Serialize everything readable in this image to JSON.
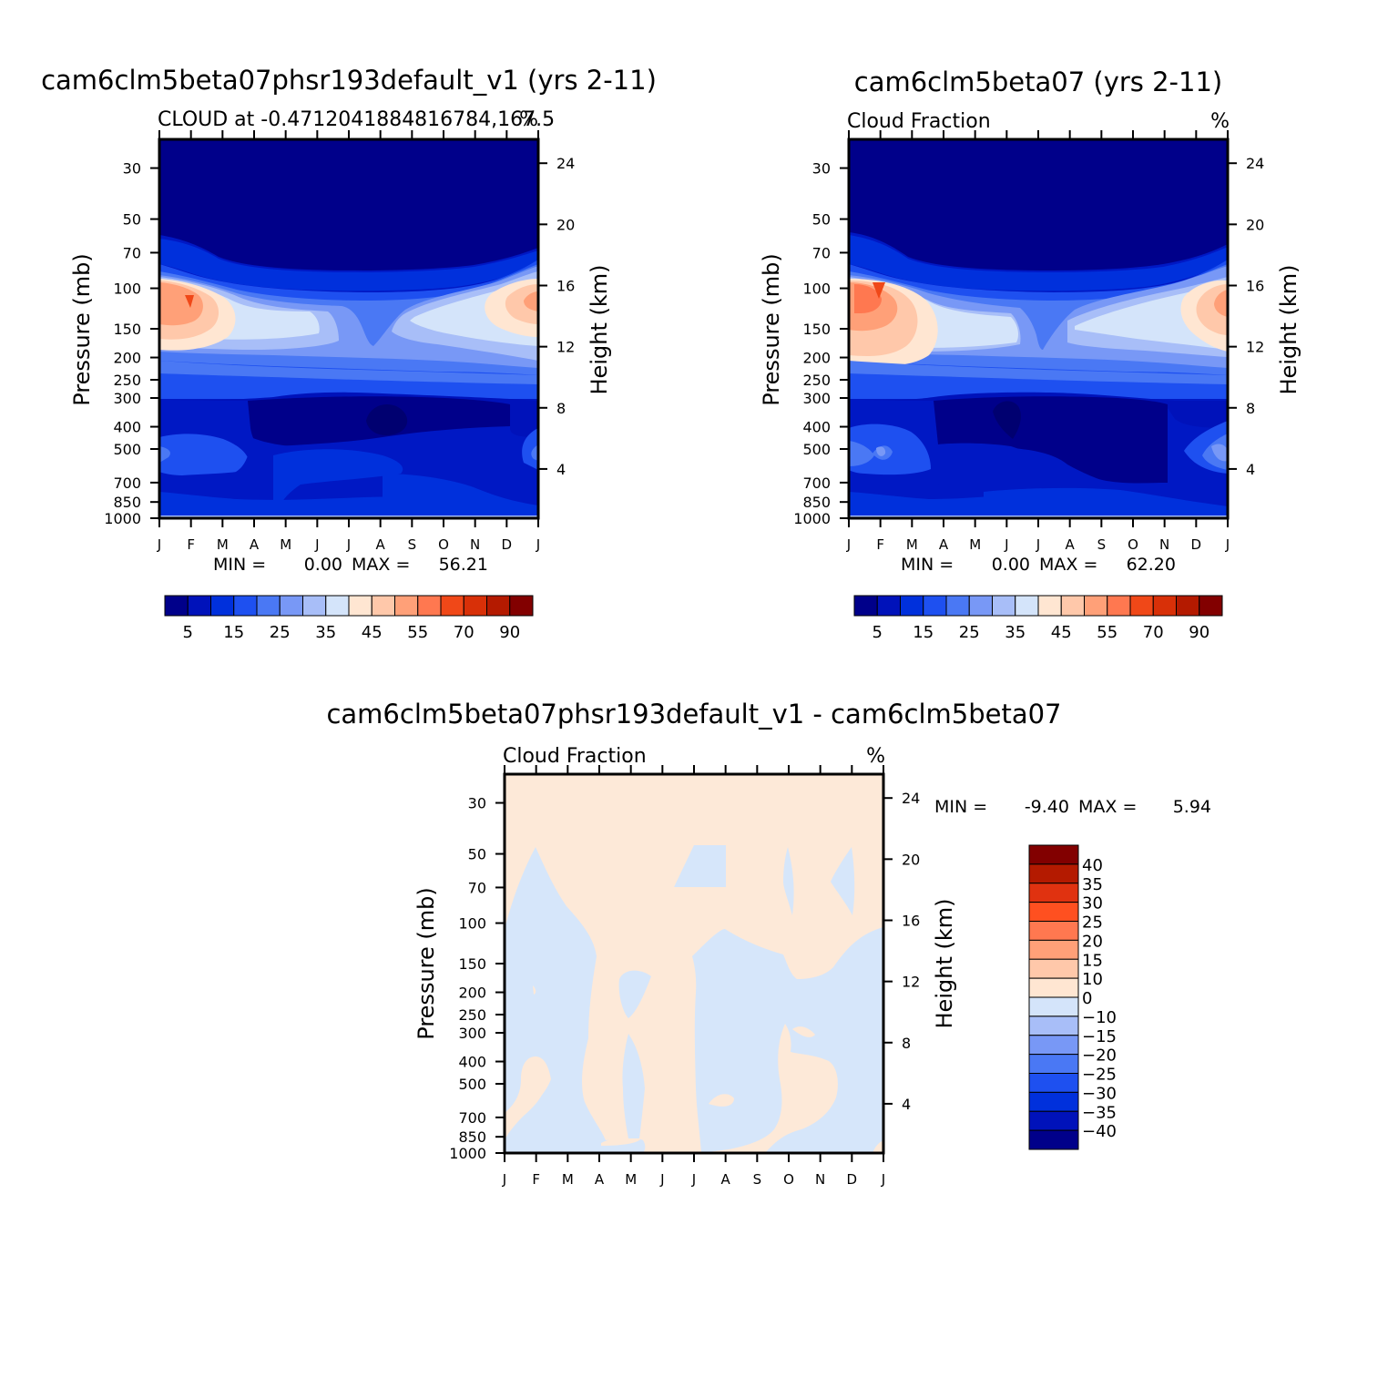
{
  "chart_data": [
    {
      "type": "heatmap",
      "title": "cam6clm5beta07phsr193default_v1 (yrs 2-11)",
      "subtitle": "CLOUD at -0.4712041884816784,167.5",
      "units": "%",
      "ylabel": "Pressure (mb)",
      "y2label": "Height (km)",
      "x_ticks": [
        "J",
        "F",
        "M",
        "A",
        "M",
        "J",
        "J",
        "A",
        "S",
        "O",
        "N",
        "D",
        "J"
      ],
      "y_ticks": [
        "30",
        "50",
        "70",
        "100",
        "150",
        "200",
        "250",
        "300",
        "400",
        "500",
        "700",
        "850",
        "1000"
      ],
      "y2_ticks": [
        "24",
        "20",
        "16",
        "12",
        "8",
        "4"
      ],
      "stats": {
        "min_label": "MIN =",
        "min": "0.00",
        "max_label": "MAX =",
        "max": "56.21"
      },
      "colorbar": {
        "orientation": "horizontal",
        "labels": [
          "5",
          "15",
          "25",
          "35",
          "45",
          "55",
          "70",
          "90"
        ]
      },
      "max_value": 56.21
    },
    {
      "type": "heatmap",
      "title": "cam6clm5beta07 (yrs 2-11)",
      "subtitle": "Cloud Fraction",
      "units": "%",
      "ylabel": "Pressure (mb)",
      "y2label": "Height (km)",
      "x_ticks": [
        "J",
        "F",
        "M",
        "A",
        "M",
        "J",
        "J",
        "A",
        "S",
        "O",
        "N",
        "D",
        "J"
      ],
      "y_ticks": [
        "30",
        "50",
        "70",
        "100",
        "150",
        "200",
        "250",
        "300",
        "400",
        "500",
        "700",
        "850",
        "1000"
      ],
      "y2_ticks": [
        "24",
        "20",
        "16",
        "12",
        "8",
        "4"
      ],
      "stats": {
        "min_label": "MIN =",
        "min": "0.00",
        "max_label": "MAX =",
        "max": "62.20"
      },
      "colorbar": {
        "orientation": "horizontal",
        "labels": [
          "5",
          "15",
          "25",
          "35",
          "45",
          "55",
          "70",
          "90"
        ]
      },
      "max_value": 62.2
    },
    {
      "type": "heatmap",
      "title": "cam6clm5beta07phsr193default_v1 - cam6clm5beta07",
      "subtitle": "Cloud Fraction",
      "units": "%",
      "ylabel": "Pressure (mb)",
      "y2label": "Height (km)",
      "x_ticks": [
        "J",
        "F",
        "M",
        "A",
        "M",
        "J",
        "J",
        "A",
        "S",
        "O",
        "N",
        "D",
        "J"
      ],
      "y_ticks": [
        "30",
        "50",
        "70",
        "100",
        "150",
        "200",
        "250",
        "300",
        "400",
        "500",
        "700",
        "850",
        "1000"
      ],
      "y2_ticks": [
        "24",
        "20",
        "16",
        "12",
        "8",
        "4"
      ],
      "stats": {
        "min_label": "MIN =",
        "min": "-9.40",
        "max_label": "MAX =",
        "max": "5.94"
      },
      "colorbar": {
        "orientation": "vertical",
        "labels": [
          "40",
          "35",
          "30",
          "25",
          "20",
          "15",
          "10",
          "0",
          "-10",
          "-15",
          "-20",
          "-25",
          "-30",
          "-35",
          "-40"
        ]
      }
    }
  ],
  "colors": {
    "abs_scale": [
      "#00008a",
      "#0012ba",
      "#0030dc",
      "#1e50f0",
      "#4a78f4",
      "#7898f6",
      "#a8bef8",
      "#d4e4fa",
      "#ffe6d2",
      "#ffc8aa",
      "#ffa078",
      "#ff7850",
      "#f04818",
      "#d83008",
      "#b41a00",
      "#820000"
    ],
    "diff_scale": [
      "#820000",
      "#b41a00",
      "#e03210",
      "#ff5020",
      "#ff7850",
      "#ffa078",
      "#ffc8aa",
      "#ffe6d2",
      "#d4e4fa",
      "#a8bef8",
      "#7898f6",
      "#4a78f4",
      "#1e50f0",
      "#0030dc",
      "#0012ba",
      "#00008a"
    ],
    "diff_neg": "#d6e6fa",
    "diff_pos": "#fde9d8"
  }
}
